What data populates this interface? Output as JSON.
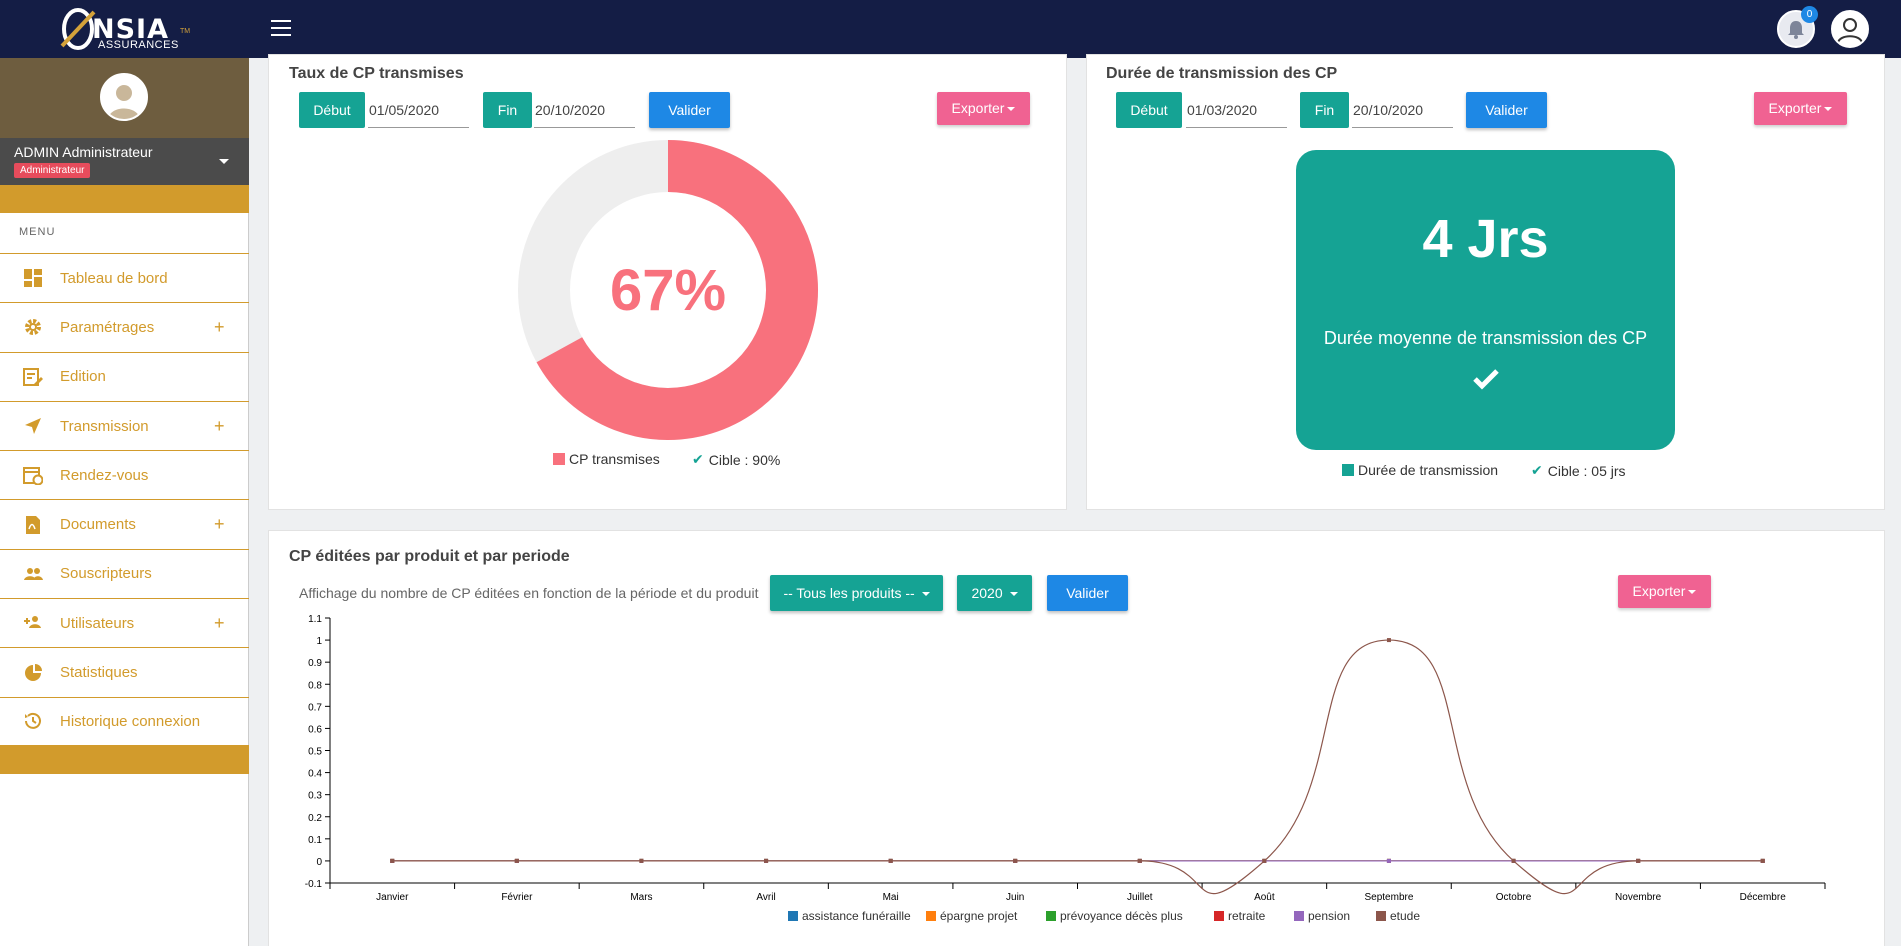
{
  "brand": {
    "name": "NSIA",
    "sub": "ASSURANCES",
    "tm": "TM"
  },
  "header": {
    "notification_count": "0"
  },
  "user": {
    "name": "ADMIN Administrateur",
    "role": "Administrateur"
  },
  "sidebar": {
    "menu_header": "MENU",
    "items": [
      {
        "label": "Tableau de bord",
        "icon": "dashboard-icon",
        "expandable": false
      },
      {
        "label": "Paramétrages",
        "icon": "gear-icon",
        "expandable": true
      },
      {
        "label": "Edition",
        "icon": "edit-icon",
        "expandable": false
      },
      {
        "label": "Transmission",
        "icon": "send-icon",
        "expandable": true
      },
      {
        "label": "Rendez-vous",
        "icon": "calendar-icon",
        "expandable": false
      },
      {
        "label": "Documents",
        "icon": "pdf-icon",
        "expandable": true
      },
      {
        "label": "Souscripteurs",
        "icon": "people-icon",
        "expandable": false
      },
      {
        "label": "Utilisateurs",
        "icon": "add-user-icon",
        "expandable": true
      },
      {
        "label": "Statistiques",
        "icon": "pie-chart-icon",
        "expandable": false
      },
      {
        "label": "Historique connexion",
        "icon": "history-icon",
        "expandable": false
      }
    ]
  },
  "card_taux": {
    "title": "Taux de CP transmises",
    "debut_label": "Début",
    "debut_value": "01/05/2020",
    "fin_label": "Fin",
    "fin_value": "20/10/2020",
    "valider": "Valider",
    "exporter": "Exporter",
    "percent_value": 67,
    "percent_text": "67%",
    "legend_series": "CP transmises",
    "legend_target": "Cible : 90%",
    "series_color": "#f8717d",
    "rest_color": "#eeeeee"
  },
  "card_duree": {
    "title": "Durée de transmission des CP",
    "debut_label": "Début",
    "debut_value": "01/03/2020",
    "fin_label": "Fin",
    "fin_value": "20/10/2020",
    "valider": "Valider",
    "exporter": "Exporter",
    "stat_value": "4 Jrs",
    "stat_label": "Durée moyenne de transmission des CP",
    "legend_series": "Durée de transmission",
    "legend_target": "Cible : 05 jrs",
    "color": "#15a394"
  },
  "card_editees": {
    "title": "CP éditées par produit et par periode",
    "description": "Affichage du nombre de CP éditées en fonction de la période et du produit",
    "product_select": "-- Tous les produits --",
    "year_select": "2020",
    "valider": "Valider",
    "exporter": "Exporter"
  },
  "chart_data": {
    "type": "line",
    "categories": [
      "Janvier",
      "Février",
      "Mars",
      "Avril",
      "Mai",
      "Juin",
      "Juillet",
      "Août",
      "Septembre",
      "Octobre",
      "Novembre",
      "Décembre"
    ],
    "ylim": [
      -0.1,
      1.1
    ],
    "yticks": [
      "-0.1",
      "0",
      "0.1",
      "0.2",
      "0.3",
      "0.4",
      "0.5",
      "0.6",
      "0.7",
      "0.8",
      "0.9",
      "1",
      "1.1"
    ],
    "series": [
      {
        "name": "assistance funéraille",
        "color": "#1f77b4",
        "values": [
          0,
          0,
          0,
          0,
          0,
          0,
          0,
          0,
          0,
          0,
          0,
          0
        ]
      },
      {
        "name": "épargne projet",
        "color": "#ff7f0e",
        "values": [
          0,
          0,
          0,
          0,
          0,
          0,
          0,
          0,
          0,
          0,
          0,
          0
        ]
      },
      {
        "name": "prévoyance décès plus",
        "color": "#2ca02c",
        "values": [
          0,
          0,
          0,
          0,
          0,
          0,
          0,
          0,
          0,
          0,
          0,
          0
        ]
      },
      {
        "name": "retraite",
        "color": "#d62728",
        "values": [
          0,
          0,
          0,
          0,
          0,
          0,
          0,
          0,
          0,
          0,
          0,
          0
        ]
      },
      {
        "name": "pension",
        "color": "#9467bd",
        "values": [
          0,
          0,
          0,
          0,
          0,
          0,
          0,
          0,
          0,
          0,
          0,
          0
        ]
      },
      {
        "name": "etude",
        "color": "#8c564b",
        "values": [
          0,
          0,
          0,
          0,
          0,
          0,
          0,
          0,
          1,
          0,
          0,
          0
        ]
      }
    ]
  }
}
